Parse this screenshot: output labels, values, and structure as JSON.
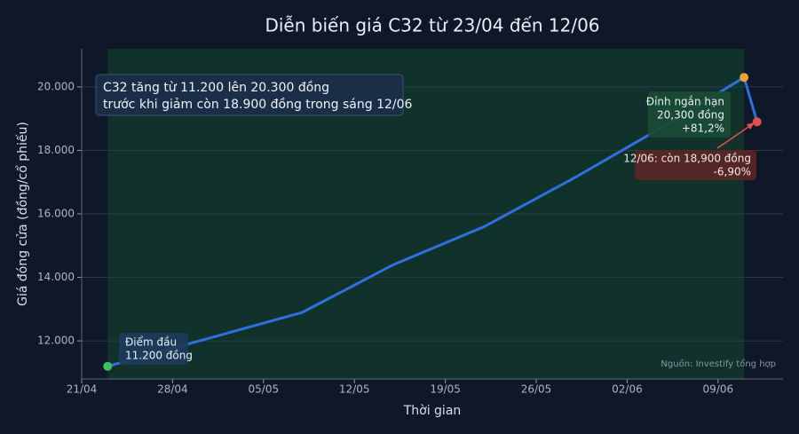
{
  "chart_data": {
    "type": "line",
    "title": "Diễn biến giá C32 từ 23/04 đến 12/06",
    "x_label": "Thời gian",
    "y_label": "Giá đóng cửa (đồng/cổ phiếu)",
    "x": [
      "23/04",
      "08/05",
      "15/05",
      "22/05",
      "29/05",
      "05/06",
      "11/06",
      "12/06"
    ],
    "series": [
      {
        "name": "C32",
        "color": "#2f6fe0",
        "values": [
          11200,
          12900,
          14400,
          15600,
          17150,
          18800,
          20300,
          18900
        ],
        "marker_colors": [
          "#3fc15a",
          null,
          null,
          null,
          null,
          null,
          "#f0a030",
          "#e05050"
        ]
      }
    ],
    "xlim": [
      "21/04",
      "14/06"
    ],
    "xticks": [
      "21/04",
      "28/04",
      "05/05",
      "12/05",
      "19/05",
      "26/05",
      "02/06",
      "09/06"
    ],
    "ylim": [
      10800,
      21200
    ],
    "yticks": [
      {
        "value": 12000,
        "label": "12.000"
      },
      {
        "value": 14000,
        "label": "14.000"
      },
      {
        "value": 16000,
        "label": "16.000"
      },
      {
        "value": 18000,
        "label": "18.000"
      },
      {
        "value": 20000,
        "label": "20.000"
      }
    ],
    "grid": true,
    "highlight_range": [
      "23/04",
      "11/06"
    ],
    "annotations": [
      {
        "name": "info",
        "lines": [
          "C32 tăng từ 11.200 lên 20.300 đồng",
          "trước khi giảm còn 18.900 đồng trong sáng 12/06"
        ]
      },
      {
        "name": "start",
        "lines": [
          "Điểm đầu",
          "11.200 đồng"
        ]
      },
      {
        "name": "peak",
        "lines": [
          "Đỉnh ngắn hạn",
          "20,300 đồng",
          "+81,2%"
        ]
      },
      {
        "name": "end",
        "lines": [
          "12/06: còn 18,900 đồng",
          "-6,90%"
        ]
      }
    ],
    "source": "Nguồn: Investify tổng hợp"
  }
}
